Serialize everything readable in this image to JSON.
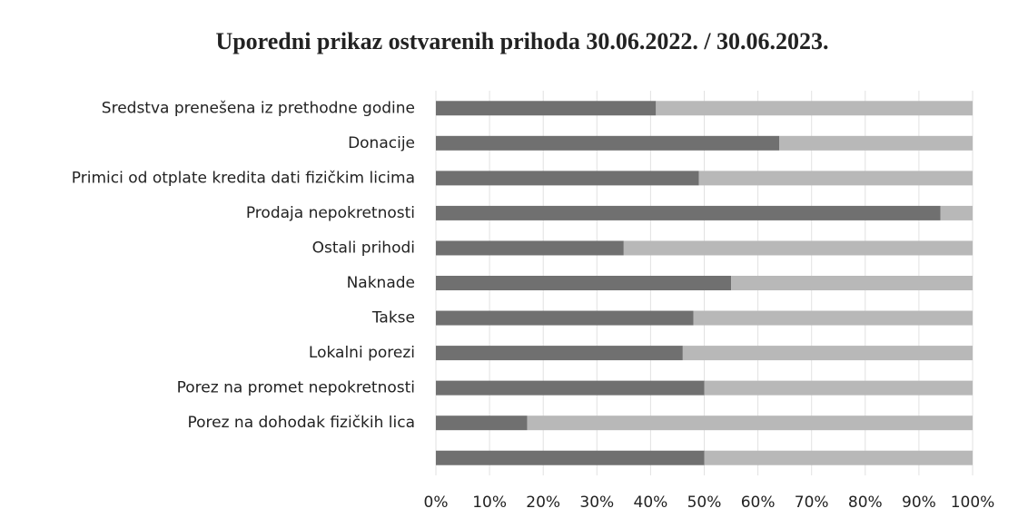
{
  "chart_data": {
    "type": "bar",
    "orientation": "horizontal",
    "stacked": true,
    "title": "Uporedni prikaz ostvarenih prihoda 30.06.2022. / 30.06.2023.",
    "categories": [
      "Sredstva prenešena iz prethodne godine",
      "Donacije",
      "Primici od otplate kredita dati fizičkim licima",
      "Prodaja nepokretnosti",
      "Ostali prihodi",
      "Naknade",
      "Takse",
      "Lokalni porezi",
      "Porez na promet nepokretnosti",
      "Porez na dohodak fizičkih lica",
      null
    ],
    "series": [
      {
        "color": "#707070",
        "values": [
          41,
          64,
          49,
          94,
          35,
          55,
          48,
          46,
          50,
          17,
          50
        ]
      },
      {
        "color": "#b8b8b8",
        "values": [
          59,
          36,
          51,
          6,
          65,
          45,
          52,
          54,
          50,
          83,
          50
        ]
      }
    ],
    "xlim": [
      0,
      100
    ],
    "xticks": [
      {
        "value": 0,
        "label": "0%"
      },
      {
        "value": 10,
        "label": "10%"
      },
      {
        "value": 20,
        "label": "20%"
      },
      {
        "value": 30,
        "label": "30%"
      },
      {
        "value": 40,
        "label": "40%"
      },
      {
        "value": 50,
        "label": "50%"
      },
      {
        "value": 60,
        "label": "60%"
      },
      {
        "value": 70,
        "label": "70%"
      },
      {
        "value": 80,
        "label": "80%"
      },
      {
        "value": 90,
        "label": "90%"
      },
      {
        "value": 100,
        "label": "100%"
      }
    ],
    "grid": true
  }
}
